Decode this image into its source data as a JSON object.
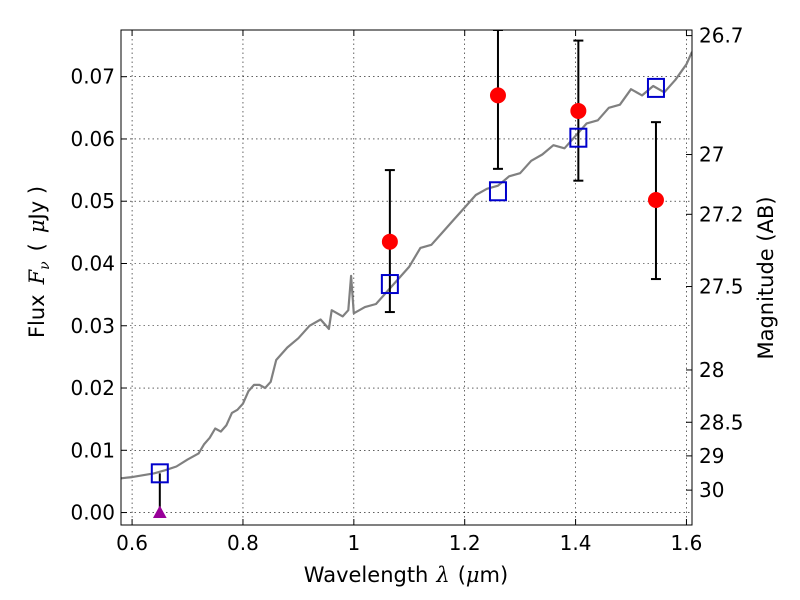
{
  "chart_data": {
    "type": "scatter",
    "xlabel": "Wavelength",
    "xlabel_symbol": "λ",
    "xlabel_unit_open": "(",
    "xlabel_unit_mu": "μ",
    "xlabel_unit_rest": "m)",
    "ylabel": "Flux",
    "ylabel_symbol_main": "F",
    "ylabel_symbol_sub": "ν",
    "ylabel_unit_open": "(",
    "ylabel_unit_mu": "μ",
    "ylabel_unit_rest": "Jy )",
    "y2label": "Magnitude (AB)",
    "xlim": [
      0.58,
      1.61
    ],
    "ylim": [
      -0.002,
      0.0775
    ],
    "grid": true,
    "x_ticks": [
      0.6,
      0.8,
      1.0,
      1.2,
      1.4,
      1.6
    ],
    "x_tick_labels": [
      "0.6",
      "0.8",
      "1",
      "1.2",
      "1.4",
      "1.6"
    ],
    "y_ticks": [
      0.0,
      0.01,
      0.02,
      0.03,
      0.04,
      0.05,
      0.06,
      0.07
    ],
    "y_tick_labels": [
      "0.00",
      "0.01",
      "0.02",
      "0.03",
      "0.04",
      "0.05",
      "0.06",
      "0.07"
    ],
    "y2_ticks": [
      {
        "label": "26.7",
        "flux": 0.0766
      },
      {
        "label": "27",
        "flux": 0.0575
      },
      {
        "label": "27.2",
        "flux": 0.0479
      },
      {
        "label": "27.5",
        "flux": 0.0363
      },
      {
        "label": "28",
        "flux": 0.0229
      },
      {
        "label": "28.5",
        "flux": 0.0145
      },
      {
        "label": "29",
        "flux": 0.0091
      },
      {
        "label": "30",
        "flux": 0.0036
      }
    ],
    "series": [
      {
        "kind": "spectrum",
        "color": "#808080",
        "x": [
          0.58,
          0.6,
          0.62,
          0.64,
          0.66,
          0.68,
          0.7,
          0.72,
          0.73,
          0.74,
          0.75,
          0.76,
          0.77,
          0.78,
          0.79,
          0.8,
          0.81,
          0.82,
          0.83,
          0.84,
          0.85,
          0.86,
          0.88,
          0.9,
          0.92,
          0.94,
          0.955,
          0.96,
          0.97,
          0.98,
          0.99,
          0.995,
          1.0,
          1.02,
          1.04,
          1.06,
          1.08,
          1.1,
          1.12,
          1.14,
          1.16,
          1.18,
          1.2,
          1.22,
          1.24,
          1.26,
          1.28,
          1.3,
          1.32,
          1.34,
          1.36,
          1.38,
          1.4,
          1.42,
          1.44,
          1.46,
          1.48,
          1.5,
          1.52,
          1.54,
          1.56,
          1.58,
          1.6,
          1.61
        ],
        "y": [
          0.0055,
          0.0057,
          0.006,
          0.0063,
          0.0068,
          0.0074,
          0.0085,
          0.0095,
          0.011,
          0.012,
          0.0135,
          0.013,
          0.014,
          0.016,
          0.0165,
          0.0175,
          0.0195,
          0.0205,
          0.0205,
          0.02,
          0.021,
          0.0245,
          0.0265,
          0.028,
          0.03,
          0.031,
          0.0295,
          0.0325,
          0.032,
          0.0315,
          0.0325,
          0.038,
          0.032,
          0.033,
          0.0335,
          0.0355,
          0.0375,
          0.0395,
          0.0425,
          0.043,
          0.045,
          0.047,
          0.049,
          0.051,
          0.052,
          0.0525,
          0.054,
          0.0545,
          0.0565,
          0.0575,
          0.059,
          0.0585,
          0.0605,
          0.0625,
          0.063,
          0.065,
          0.0655,
          0.068,
          0.067,
          0.0685,
          0.0675,
          0.0695,
          0.072,
          0.074
        ]
      },
      {
        "kind": "model_photometry",
        "marker": "open-square",
        "color": "#0000cc",
        "x": [
          0.65,
          1.065,
          1.26,
          1.405,
          1.545
        ],
        "y": [
          0.0063,
          0.0367,
          0.0516,
          0.0602,
          0.0682
        ]
      },
      {
        "kind": "observed_photometry",
        "marker": "filled-circle",
        "color": "#ff0000",
        "x": [
          1.065,
          1.26,
          1.405,
          1.545
        ],
        "y": [
          0.0435,
          0.067,
          0.0645,
          0.0502
        ],
        "yerr_low": [
          0.0113,
          0.0118,
          0.0112,
          0.0127
        ],
        "yerr_high": [
          0.0115,
          0.0105,
          0.0113,
          0.0125
        ]
      },
      {
        "kind": "upper_limit",
        "marker": "triangle",
        "color": "#990099",
        "x": [
          0.65
        ],
        "y": [
          0.0
        ],
        "limit_top": [
          0.0063
        ]
      }
    ]
  }
}
